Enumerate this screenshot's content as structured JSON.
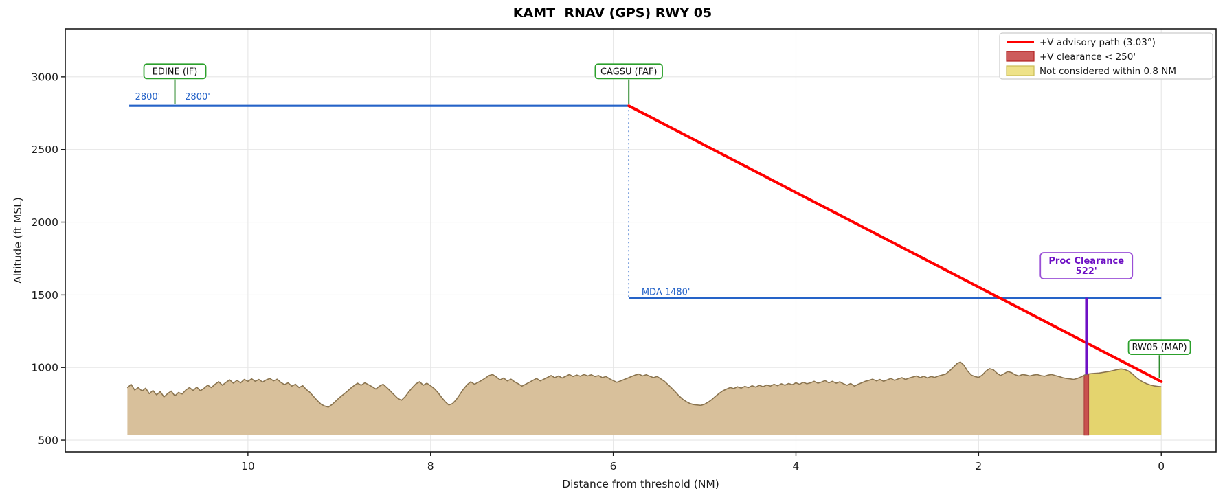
{
  "title": "KAMT  RNAV (GPS) RWY 05",
  "chart_data": {
    "type": "line",
    "title": "KAMT  RNAV (GPS) RWY 05",
    "xlabel": "Distance from threshold (NM)",
    "ylabel": "Altitude (ft MSL)",
    "grid": true,
    "x_axis": {
      "lim": [
        12.0,
        -0.6
      ],
      "ticks": [
        10,
        8,
        6,
        4,
        2,
        0
      ],
      "reversed": true
    },
    "y_axis": {
      "lim": [
        420,
        3330
      ],
      "ticks": [
        500,
        1000,
        1500,
        2000,
        2500,
        3000
      ]
    },
    "colors": {
      "advisory_path": "#ff0000",
      "procedure_blue": "#2563c8",
      "waypoint_green": "#2ca02c",
      "tick_green": "#2e8b2e",
      "proc_clearance_purple": "#6e10c4",
      "proc_box_border": "#9a4fd6",
      "terrain_fill": "#d8c09b",
      "terrain_edge": "#8a744f",
      "strip_fill": "#c9524e",
      "strip_edge": "#a83c38",
      "not_considered_fill": "#e4d46e",
      "legend_red_fill": "#cd5c5c",
      "legend_red_edge": "#b22222",
      "legend_yellow_fill": "#eee289",
      "legend_yellow_edge": "#c9bc55",
      "grid": "#e6e6e6",
      "spine": "#1a1a1a"
    },
    "legend": {
      "position": "upper-right",
      "entries": [
        {
          "type": "line",
          "label": "+V advisory path (3.03°)",
          "color": "#ff0000"
        },
        {
          "type": "patch",
          "label": "+V clearance < 250'",
          "fill": "#cd5c5c",
          "edge": "#b22222"
        },
        {
          "type": "patch",
          "label": "Not considered within 0.8 NM",
          "fill": "#eee289",
          "edge": "#c9bc55"
        }
      ]
    },
    "procedure": {
      "level_segment": {
        "x": [
          11.3,
          5.83
        ],
        "altitude_ft": 2800
      },
      "faf_descent_marker": {
        "x": 5.83,
        "alt": [
          2800,
          1480
        ],
        "style": "dotted"
      },
      "mda_segment": {
        "x": [
          5.83,
          0.0
        ],
        "altitude_ft": 1480
      },
      "advisory_path": {
        "x": [
          5.83,
          0.0
        ],
        "alt": [
          2800,
          903
        ],
        "angle_deg": 3.03
      },
      "proc_clearance": {
        "x": 0.82,
        "alt": [
          1480,
          952
        ],
        "label_line1": "Proc Clearance",
        "label_line2": "522'",
        "box_alt": 1700
      },
      "clearance_strip": {
        "x": [
          0.845,
          0.795
        ]
      },
      "not_considered": {
        "x": [
          0.8,
          0.0
        ]
      }
    },
    "annotations": {
      "alt_labels": [
        {
          "text": "2800'",
          "x": 10.93,
          "anchor": "end",
          "alt": 2843
        },
        {
          "text": "2800'",
          "x": 10.72,
          "anchor": "start",
          "alt": 2843
        }
      ],
      "mda_label": {
        "text": "MDA 1480'",
        "x": 5.72,
        "alt": 1500
      }
    },
    "waypoints": [
      {
        "label": "EDINE (IF)",
        "x": 10.8,
        "box_alt": 3038,
        "tick_from": 2982,
        "tick_to": 2812
      },
      {
        "label": "CAGSU (FAF)",
        "x": 5.83,
        "box_alt": 3038,
        "tick_from": 2982,
        "tick_to": 2812
      },
      {
        "label": "RW05 (MAP)",
        "x": 0.02,
        "box_alt": 1140,
        "tick_from": 1085,
        "tick_to": 925
      }
    ],
    "terrain": {
      "baseline_ft": 535,
      "points": [
        [
          11.32,
          860
        ],
        [
          11.28,
          885
        ],
        [
          11.24,
          845
        ],
        [
          11.2,
          862
        ],
        [
          11.16,
          838
        ],
        [
          11.12,
          858
        ],
        [
          11.08,
          820
        ],
        [
          11.04,
          842
        ],
        [
          11.0,
          812
        ],
        [
          10.96,
          835
        ],
        [
          10.92,
          798
        ],
        [
          10.88,
          820
        ],
        [
          10.84,
          838
        ],
        [
          10.8,
          805
        ],
        [
          10.76,
          828
        ],
        [
          10.72,
          818
        ],
        [
          10.68,
          845
        ],
        [
          10.64,
          862
        ],
        [
          10.6,
          842
        ],
        [
          10.56,
          865
        ],
        [
          10.52,
          840
        ],
        [
          10.48,
          858
        ],
        [
          10.44,
          878
        ],
        [
          10.4,
          862
        ],
        [
          10.36,
          885
        ],
        [
          10.32,
          902
        ],
        [
          10.28,
          878
        ],
        [
          10.24,
          898
        ],
        [
          10.2,
          915
        ],
        [
          10.16,
          892
        ],
        [
          10.12,
          912
        ],
        [
          10.08,
          895
        ],
        [
          10.04,
          918
        ],
        [
          10.0,
          905
        ],
        [
          9.96,
          922
        ],
        [
          9.92,
          905
        ],
        [
          9.88,
          918
        ],
        [
          9.84,
          900
        ],
        [
          9.8,
          915
        ],
        [
          9.76,
          925
        ],
        [
          9.72,
          908
        ],
        [
          9.68,
          920
        ],
        [
          9.64,
          898
        ],
        [
          9.6,
          882
        ],
        [
          9.56,
          895
        ],
        [
          9.52,
          872
        ],
        [
          9.48,
          885
        ],
        [
          9.44,
          862
        ],
        [
          9.4,
          875
        ],
        [
          9.36,
          848
        ],
        [
          9.32,
          828
        ],
        [
          9.28,
          800
        ],
        [
          9.24,
          772
        ],
        [
          9.2,
          748
        ],
        [
          9.16,
          735
        ],
        [
          9.12,
          728
        ],
        [
          9.08,
          745
        ],
        [
          9.04,
          768
        ],
        [
          9.0,
          792
        ],
        [
          8.96,
          812
        ],
        [
          8.92,
          832
        ],
        [
          8.88,
          855
        ],
        [
          8.84,
          875
        ],
        [
          8.8,
          892
        ],
        [
          8.76,
          878
        ],
        [
          8.72,
          895
        ],
        [
          8.68,
          882
        ],
        [
          8.64,
          868
        ],
        [
          8.6,
          852
        ],
        [
          8.56,
          872
        ],
        [
          8.52,
          885
        ],
        [
          8.48,
          862
        ],
        [
          8.44,
          838
        ],
        [
          8.4,
          812
        ],
        [
          8.36,
          788
        ],
        [
          8.32,
          775
        ],
        [
          8.28,
          798
        ],
        [
          8.24,
          832
        ],
        [
          8.2,
          862
        ],
        [
          8.16,
          888
        ],
        [
          8.12,
          902
        ],
        [
          8.08,
          878
        ],
        [
          8.04,
          892
        ],
        [
          8.0,
          875
        ],
        [
          7.96,
          855
        ],
        [
          7.92,
          828
        ],
        [
          7.88,
          795
        ],
        [
          7.84,
          765
        ],
        [
          7.8,
          742
        ],
        [
          7.76,
          752
        ],
        [
          7.72,
          778
        ],
        [
          7.68,
          815
        ],
        [
          7.64,
          852
        ],
        [
          7.6,
          882
        ],
        [
          7.56,
          902
        ],
        [
          7.52,
          885
        ],
        [
          7.48,
          898
        ],
        [
          7.44,
          912
        ],
        [
          7.4,
          928
        ],
        [
          7.36,
          945
        ],
        [
          7.32,
          952
        ],
        [
          7.28,
          935
        ],
        [
          7.24,
          915
        ],
        [
          7.2,
          928
        ],
        [
          7.16,
          908
        ],
        [
          7.12,
          920
        ],
        [
          7.08,
          902
        ],
        [
          7.04,
          888
        ],
        [
          7.0,
          872
        ],
        [
          6.96,
          885
        ],
        [
          6.92,
          898
        ],
        [
          6.88,
          912
        ],
        [
          6.84,
          925
        ],
        [
          6.8,
          908
        ],
        [
          6.76,
          920
        ],
        [
          6.72,
          932
        ],
        [
          6.68,
          945
        ],
        [
          6.64,
          930
        ],
        [
          6.6,
          942
        ],
        [
          6.56,
          928
        ],
        [
          6.52,
          940
        ],
        [
          6.48,
          952
        ],
        [
          6.44,
          938
        ],
        [
          6.4,
          948
        ],
        [
          6.36,
          940
        ],
        [
          6.32,
          952
        ],
        [
          6.28,
          942
        ],
        [
          6.24,
          950
        ],
        [
          6.2,
          938
        ],
        [
          6.16,
          945
        ],
        [
          6.12,
          930
        ],
        [
          6.08,
          938
        ],
        [
          6.04,
          922
        ],
        [
          6.0,
          910
        ],
        [
          5.96,
          898
        ],
        [
          5.92,
          908
        ],
        [
          5.88,
          918
        ],
        [
          5.84,
          928
        ],
        [
          5.8,
          938
        ],
        [
          5.76,
          948
        ],
        [
          5.72,
          955
        ],
        [
          5.68,
          942
        ],
        [
          5.64,
          950
        ],
        [
          5.6,
          940
        ],
        [
          5.56,
          930
        ],
        [
          5.52,
          938
        ],
        [
          5.48,
          922
        ],
        [
          5.44,
          905
        ],
        [
          5.4,
          882
        ],
        [
          5.36,
          858
        ],
        [
          5.32,
          832
        ],
        [
          5.28,
          805
        ],
        [
          5.24,
          782
        ],
        [
          5.2,
          765
        ],
        [
          5.16,
          752
        ],
        [
          5.12,
          745
        ],
        [
          5.08,
          742
        ],
        [
          5.04,
          740
        ],
        [
          5.0,
          748
        ],
        [
          4.96,
          762
        ],
        [
          4.92,
          780
        ],
        [
          4.88,
          802
        ],
        [
          4.84,
          822
        ],
        [
          4.8,
          840
        ],
        [
          4.76,
          852
        ],
        [
          4.72,
          862
        ],
        [
          4.68,
          855
        ],
        [
          4.64,
          868
        ],
        [
          4.6,
          858
        ],
        [
          4.56,
          870
        ],
        [
          4.52,
          862
        ],
        [
          4.48,
          875
        ],
        [
          4.44,
          865
        ],
        [
          4.4,
          878
        ],
        [
          4.36,
          868
        ],
        [
          4.32,
          880
        ],
        [
          4.28,
          872
        ],
        [
          4.24,
          885
        ],
        [
          4.2,
          875
        ],
        [
          4.16,
          888
        ],
        [
          4.12,
          878
        ],
        [
          4.08,
          890
        ],
        [
          4.04,
          882
        ],
        [
          4.0,
          895
        ],
        [
          3.96,
          885
        ],
        [
          3.92,
          898
        ],
        [
          3.88,
          888
        ],
        [
          3.84,
          895
        ],
        [
          3.8,
          905
        ],
        [
          3.76,
          892
        ],
        [
          3.72,
          900
        ],
        [
          3.68,
          910
        ],
        [
          3.64,
          895
        ],
        [
          3.6,
          905
        ],
        [
          3.56,
          892
        ],
        [
          3.52,
          902
        ],
        [
          3.48,
          888
        ],
        [
          3.44,
          878
        ],
        [
          3.4,
          890
        ],
        [
          3.36,
          872
        ],
        [
          3.32,
          885
        ],
        [
          3.28,
          895
        ],
        [
          3.24,
          905
        ],
        [
          3.2,
          912
        ],
        [
          3.16,
          920
        ],
        [
          3.12,
          908
        ],
        [
          3.08,
          918
        ],
        [
          3.04,
          905
        ],
        [
          3.0,
          915
        ],
        [
          2.96,
          925
        ],
        [
          2.92,
          912
        ],
        [
          2.88,
          922
        ],
        [
          2.84,
          930
        ],
        [
          2.8,
          918
        ],
        [
          2.76,
          928
        ],
        [
          2.72,
          935
        ],
        [
          2.68,
          942
        ],
        [
          2.64,
          930
        ],
        [
          2.6,
          940
        ],
        [
          2.56,
          928
        ],
        [
          2.52,
          938
        ],
        [
          2.48,
          932
        ],
        [
          2.44,
          942
        ],
        [
          2.4,
          948
        ],
        [
          2.36,
          955
        ],
        [
          2.32,
          975
        ],
        [
          2.28,
          1000
        ],
        [
          2.24,
          1025
        ],
        [
          2.2,
          1038
        ],
        [
          2.16,
          1015
        ],
        [
          2.12,
          975
        ],
        [
          2.08,
          948
        ],
        [
          2.04,
          938
        ],
        [
          2.0,
          932
        ],
        [
          1.96,
          948
        ],
        [
          1.92,
          975
        ],
        [
          1.88,
          992
        ],
        [
          1.84,
          985
        ],
        [
          1.8,
          962
        ],
        [
          1.76,
          945
        ],
        [
          1.72,
          958
        ],
        [
          1.68,
          972
        ],
        [
          1.64,
          965
        ],
        [
          1.6,
          950
        ],
        [
          1.56,
          942
        ],
        [
          1.52,
          952
        ],
        [
          1.48,
          948
        ],
        [
          1.44,
          942
        ],
        [
          1.4,
          948
        ],
        [
          1.36,
          952
        ],
        [
          1.32,
          945
        ],
        [
          1.28,
          940
        ],
        [
          1.24,
          948
        ],
        [
          1.2,
          952
        ],
        [
          1.16,
          945
        ],
        [
          1.12,
          938
        ],
        [
          1.08,
          930
        ],
        [
          1.04,
          925
        ],
        [
          1.0,
          922
        ],
        [
          0.96,
          918
        ],
        [
          0.92,
          925
        ],
        [
          0.88,
          935
        ],
        [
          0.84,
          948
        ],
        [
          0.8,
          955
        ],
        [
          0.76,
          958
        ],
        [
          0.72,
          960
        ],
        [
          0.68,
          962
        ],
        [
          0.64,
          966
        ],
        [
          0.6,
          970
        ],
        [
          0.56,
          974
        ],
        [
          0.52,
          980
        ],
        [
          0.48,
          986
        ],
        [
          0.44,
          990
        ],
        [
          0.4,
          986
        ],
        [
          0.36,
          976
        ],
        [
          0.32,
          958
        ],
        [
          0.28,
          935
        ],
        [
          0.24,
          915
        ],
        [
          0.2,
          900
        ],
        [
          0.16,
          888
        ],
        [
          0.12,
          880
        ],
        [
          0.08,
          874
        ],
        [
          0.04,
          870
        ],
        [
          0.0,
          868
        ]
      ]
    }
  }
}
